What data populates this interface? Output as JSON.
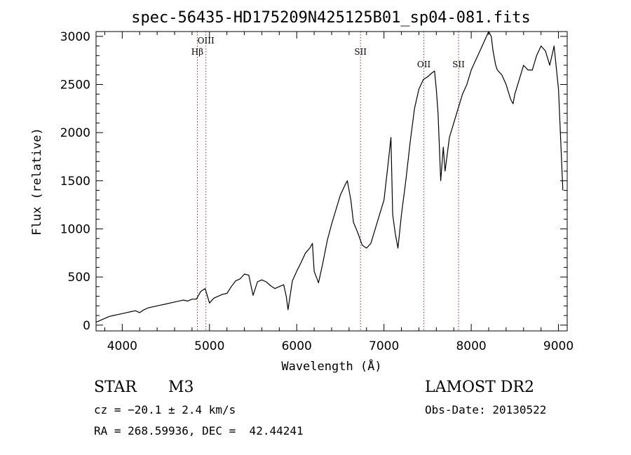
{
  "chart_data": {
    "type": "line",
    "title": "spec-56435-HD175209N425125B01_sp04-081.fits",
    "xlabel": "Wavelength (Å)",
    "ylabel": "Flux (relative)",
    "xlim": [
      3700,
      9100
    ],
    "ylim": [
      -60,
      3050
    ],
    "xticks": [
      4000,
      5000,
      6000,
      7000,
      8000,
      9000
    ],
    "yticks": [
      0,
      500,
      1000,
      1500,
      2000,
      2500,
      3000
    ],
    "grid": false,
    "series": [
      {
        "x": [
          3700,
          3750,
          3800,
          3850,
          3900,
          3950,
          4000,
          4050,
          4100,
          4150,
          4200,
          4250,
          4300,
          4350,
          4400,
          4450,
          4500,
          4550,
          4600,
          4650,
          4700,
          4750,
          4800,
          4850,
          4900,
          4950,
          5000,
          5050,
          5100,
          5150,
          5200,
          5250,
          5300,
          5350,
          5400,
          5450,
          5500,
          5550,
          5600,
          5650,
          5700,
          5750,
          5800,
          5850,
          5880,
          5900,
          5950,
          6000,
          6050,
          6100,
          6150,
          6180,
          6200,
          6250,
          6300,
          6350,
          6400,
          6450,
          6500,
          6550,
          6580,
          6620,
          6650,
          6700,
          6750,
          6800,
          6850,
          6900,
          6950,
          7000,
          7050,
          7080,
          7100,
          7130,
          7160,
          7200,
          7250,
          7300,
          7350,
          7400,
          7450,
          7500,
          7550,
          7580,
          7600,
          7620,
          7650,
          7680,
          7700,
          7750,
          7800,
          7850,
          7900,
          7950,
          8000,
          8050,
          8100,
          8150,
          8200,
          8230,
          8250,
          8280,
          8300,
          8350,
          8400,
          8450,
          8480,
          8500,
          8550,
          8600,
          8650,
          8700,
          8750,
          8800,
          8850,
          8900,
          8950,
          9000,
          9050
        ],
        "y": [
          30,
          50,
          70,
          90,
          100,
          110,
          120,
          130,
          140,
          150,
          130,
          160,
          180,
          190,
          200,
          210,
          220,
          230,
          240,
          250,
          260,
          250,
          270,
          270,
          350,
          380,
          230,
          280,
          300,
          320,
          330,
          400,
          460,
          480,
          530,
          520,
          310,
          450,
          470,
          450,
          410,
          380,
          400,
          420,
          300,
          160,
          460,
          560,
          650,
          750,
          800,
          850,
          560,
          440,
          650,
          880,
          1050,
          1200,
          1350,
          1450,
          1500,
          1300,
          1070,
          960,
          830,
          800,
          850,
          1000,
          1150,
          1300,
          1700,
          1950,
          1150,
          950,
          800,
          1150,
          1500,
          1900,
          2250,
          2450,
          2550,
          2580,
          2620,
          2640,
          2450,
          2200,
          1500,
          1850,
          1600,
          1950,
          2100,
          2250,
          2400,
          2500,
          2650,
          2750,
          2850,
          2950,
          3050,
          3000,
          2850,
          2700,
          2650,
          2600,
          2500,
          2350,
          2300,
          2400,
          2550,
          2700,
          2650,
          2650,
          2800,
          2900,
          2850,
          2700,
          2900,
          2450,
          1400
        ]
      }
    ],
    "line_markers": [
      {
        "label": "Hβ",
        "x": 4861
      },
      {
        "label": "OIII",
        "x": 4959
      },
      {
        "label": "SII",
        "x": 6731
      },
      {
        "label": "OII",
        "x": 7457
      },
      {
        "label": "SII",
        "x": 7855
      }
    ]
  },
  "info": {
    "class": "STAR",
    "subclass": "M3",
    "survey": "LAMOST DR2",
    "cz": "cz = −20.1 ± 2.4 km/s",
    "obs_date": "Obs-Date: 20130522",
    "coords": "RA = 268.59936, DEC =  42.44241"
  }
}
